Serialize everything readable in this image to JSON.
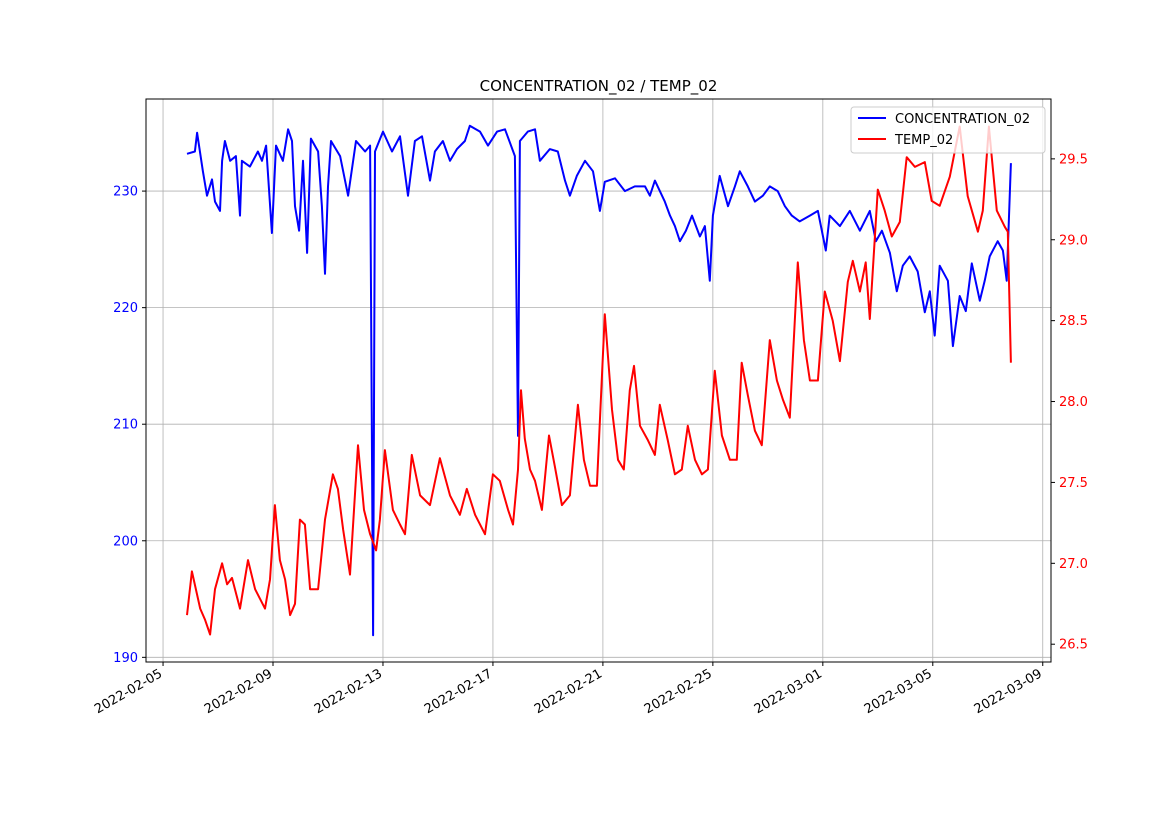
{
  "chart_data": {
    "type": "line",
    "title": "CONCENTRATION_02 / TEMP_02",
    "x_unit": "days since 2022-02-05",
    "xlim_days": [
      -0.62,
      32.3
    ],
    "x_ticks": [
      {
        "day": 0,
        "label": "2022-02-05"
      },
      {
        "day": 4,
        "label": "2022-02-09"
      },
      {
        "day": 8,
        "label": "2022-02-13"
      },
      {
        "day": 12,
        "label": "2022-02-17"
      },
      {
        "day": 16,
        "label": "2022-02-21"
      },
      {
        "day": 20,
        "label": "2022-02-25"
      },
      {
        "day": 24,
        "label": "2022-03-01"
      },
      {
        "day": 28,
        "label": "2022-03-05"
      },
      {
        "day": 32,
        "label": "2022-03-09"
      }
    ],
    "y_left": {
      "lim": [
        189.6,
        237.9
      ],
      "ticks": [
        190,
        200,
        210,
        220,
        230
      ],
      "color": "#0000ff"
    },
    "y_right": {
      "lim": [
        26.39,
        29.87
      ],
      "ticks": [
        "26.5",
        "27.0",
        "27.5",
        "28.0",
        "28.5",
        "29.0",
        "29.5"
      ],
      "color": "#ff0000"
    },
    "grid": true,
    "legend_position": "top-right",
    "series": [
      {
        "name": "CONCENTRATION_02",
        "axis": "left",
        "color": "#0000ff",
        "x": [
          0.87,
          1.16,
          1.24,
          1.45,
          1.6,
          1.78,
          1.89,
          2.07,
          2.15,
          2.25,
          2.44,
          2.65,
          2.8,
          2.87,
          3.16,
          3.45,
          3.6,
          3.75,
          3.96,
          4.11,
          4.36,
          4.55,
          4.69,
          4.8,
          4.95,
          5.09,
          5.24,
          5.38,
          5.64,
          5.78,
          5.89,
          6.0,
          6.11,
          6.44,
          6.73,
          7.02,
          7.35,
          7.53,
          7.64,
          7.71,
          8.0,
          8.33,
          8.62,
          8.91,
          9.16,
          9.42,
          9.71,
          9.89,
          10.18,
          10.44,
          10.69,
          10.98,
          11.16,
          11.53,
          11.82,
          12.15,
          12.44,
          12.8,
          12.91,
          12.98,
          13.27,
          13.53,
          13.71,
          14.07,
          14.36,
          14.62,
          14.8,
          15.05,
          15.35,
          15.64,
          15.89,
          16.07,
          16.44,
          16.8,
          17.16,
          17.53,
          17.71,
          17.89,
          18.25,
          18.44,
          18.62,
          18.8,
          19.02,
          19.24,
          19.53,
          19.71,
          19.89,
          20.0,
          20.25,
          20.55,
          20.8,
          20.98,
          21.27,
          21.53,
          21.82,
          22.07,
          22.36,
          22.62,
          22.87,
          23.16,
          23.53,
          23.82,
          24.11,
          24.25,
          24.62,
          24.98,
          25.35,
          25.71,
          25.93,
          26.15,
          26.44,
          26.69,
          26.91,
          27.16,
          27.45,
          27.71,
          27.89,
          28.07,
          28.25,
          28.55,
          28.73,
          28.98,
          29.2,
          29.42,
          29.71,
          29.89,
          30.07,
          30.36,
          30.55,
          30.69,
          30.84
        ],
        "y": [
          233.2,
          233.4,
          235,
          231.7,
          229.6,
          231,
          229.1,
          228.3,
          232.6,
          234.3,
          232.6,
          233,
          227.9,
          232.6,
          232.1,
          233.4,
          232.6,
          233.9,
          226.4,
          233.9,
          232.6,
          235.3,
          234.3,
          228.7,
          226.6,
          232.6,
          224.7,
          234.5,
          233.4,
          228.7,
          222.9,
          230.4,
          234.3,
          233,
          229.6,
          234.3,
          233.4,
          233.9,
          191.9,
          233.4,
          235.1,
          233.4,
          234.7,
          229.6,
          234.3,
          234.7,
          230.9,
          233.4,
          234.3,
          232.6,
          233.6,
          234.3,
          235.6,
          235.1,
          233.9,
          235.1,
          235.3,
          233,
          209,
          234.3,
          235.1,
          235.3,
          232.6,
          233.6,
          233.4,
          230.9,
          229.6,
          231.3,
          232.6,
          231.7,
          228.3,
          230.8,
          231.1,
          230,
          230.4,
          230.4,
          229.6,
          230.9,
          229.1,
          227.9,
          227,
          225.7,
          226.6,
          227.9,
          226.1,
          227,
          222.3,
          227.9,
          231.3,
          228.7,
          230.4,
          231.7,
          230.4,
          229.1,
          229.6,
          230.4,
          230,
          228.7,
          227.9,
          227.4,
          227.9,
          228.3,
          224.9,
          227.9,
          227,
          228.3,
          226.6,
          228.3,
          225.7,
          226.6,
          224.7,
          221.4,
          223.6,
          224.4,
          223.1,
          219.6,
          221.4,
          217.6,
          223.6,
          222.3,
          216.7,
          221,
          219.7,
          223.8,
          220.6,
          222.3,
          224.4,
          225.7,
          224.9,
          222.3,
          232.4
        ]
      },
      {
        "name": "TEMP_02",
        "axis": "right",
        "color": "#ff0000",
        "x": [
          0.87,
          1.05,
          1.35,
          1.53,
          1.71,
          1.89,
          2.15,
          2.33,
          2.51,
          2.8,
          3.09,
          3.35,
          3.71,
          3.89,
          4.07,
          4.25,
          4.44,
          4.62,
          4.8,
          4.98,
          5.16,
          5.35,
          5.64,
          5.89,
          6.18,
          6.36,
          6.55,
          6.8,
          7.09,
          7.31,
          7.53,
          7.75,
          7.89,
          8.07,
          8.36,
          8.62,
          8.8,
          9.05,
          9.35,
          9.71,
          10.07,
          10.44,
          10.8,
          11.05,
          11.35,
          11.71,
          12.0,
          12.25,
          12.55,
          12.73,
          12.91,
          13.02,
          13.16,
          13.35,
          13.53,
          13.78,
          14.04,
          14.25,
          14.51,
          14.8,
          15.09,
          15.31,
          15.53,
          15.78,
          16.07,
          16.33,
          16.55,
          16.76,
          16.98,
          17.13,
          17.35,
          17.64,
          17.89,
          18.07,
          18.36,
          18.62,
          18.87,
          19.09,
          19.35,
          19.6,
          19.82,
          20.07,
          20.33,
          20.62,
          20.87,
          21.05,
          21.27,
          21.53,
          21.78,
          22.07,
          22.33,
          22.55,
          22.8,
          23.09,
          23.31,
          23.53,
          23.82,
          24.07,
          24.36,
          24.62,
          24.91,
          25.09,
          25.35,
          25.56,
          25.71,
          26.0,
          26.25,
          26.51,
          26.8,
          27.05,
          27.35,
          27.71,
          27.96,
          28.25,
          28.62,
          28.98,
          29.27,
          29.64,
          29.82,
          30.04,
          30.33,
          30.62,
          30.73,
          30.84
        ],
        "y": [
          26.68,
          26.95,
          26.72,
          26.65,
          26.56,
          26.84,
          27.0,
          26.87,
          26.91,
          26.72,
          27.02,
          26.84,
          26.72,
          26.9,
          27.36,
          27.02,
          26.9,
          26.68,
          26.75,
          27.27,
          27.24,
          26.84,
          26.84,
          27.27,
          27.55,
          27.46,
          27.21,
          26.93,
          27.73,
          27.33,
          27.18,
          27.08,
          27.27,
          27.7,
          27.33,
          27.24,
          27.18,
          27.67,
          27.42,
          27.36,
          27.65,
          27.42,
          27.3,
          27.46,
          27.3,
          27.18,
          27.55,
          27.51,
          27.33,
          27.24,
          27.58,
          28.07,
          27.77,
          27.58,
          27.51,
          27.33,
          27.79,
          27.6,
          27.36,
          27.42,
          27.98,
          27.64,
          27.48,
          27.48,
          28.54,
          27.95,
          27.64,
          27.58,
          28.07,
          28.22,
          27.85,
          27.76,
          27.67,
          27.98,
          27.76,
          27.55,
          27.58,
          27.85,
          27.64,
          27.55,
          27.58,
          28.19,
          27.79,
          27.64,
          27.64,
          28.24,
          28.04,
          27.82,
          27.73,
          28.38,
          28.13,
          28.01,
          27.9,
          28.86,
          28.38,
          28.13,
          28.13,
          28.68,
          28.5,
          28.25,
          28.74,
          28.87,
          28.68,
          28.86,
          28.51,
          29.31,
          29.18,
          29.02,
          29.11,
          29.51,
          29.45,
          29.48,
          29.24,
          29.21,
          29.39,
          29.7,
          29.27,
          29.05,
          29.18,
          29.7,
          29.18,
          29.08,
          29.05,
          28.24
        ]
      }
    ]
  }
}
